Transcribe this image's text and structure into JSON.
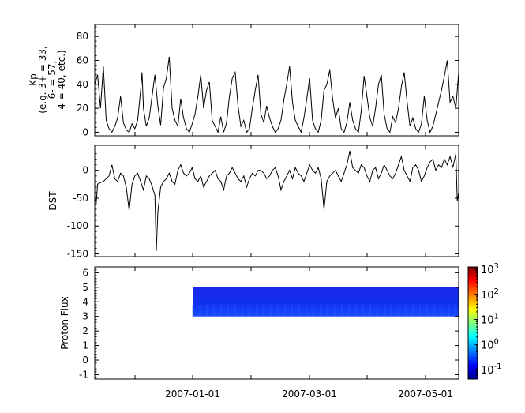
{
  "chart_data": [
    {
      "type": "line",
      "ylabel_lines": [
        "Kp",
        "(e.g. 3+ = 33,",
        "6- = 57,",
        "4 = 40, etc.)"
      ],
      "ylim": [
        -3,
        90
      ],
      "yticks": [
        0,
        20,
        40,
        60,
        80
      ],
      "series": [
        {
          "x": [
            0,
            2,
            4,
            6,
            8,
            10,
            12,
            14,
            16,
            18,
            20,
            22,
            24,
            26,
            28,
            30,
            32,
            33,
            34,
            36,
            38,
            40,
            42,
            44,
            46,
            48,
            50,
            52,
            54,
            56,
            58,
            60,
            62,
            64,
            66,
            68,
            70,
            72,
            74,
            76,
            78,
            80,
            82,
            84,
            86,
            88,
            90,
            92,
            94,
            96,
            98,
            100,
            102,
            104,
            106,
            108,
            110,
            112,
            114,
            116,
            118,
            120,
            122,
            124,
            126,
            128,
            130,
            132,
            134,
            136,
            138,
            140,
            142,
            144,
            146,
            148,
            150,
            152,
            154,
            156,
            158,
            160,
            162,
            164,
            166,
            168,
            170,
            172,
            174,
            176,
            178,
            180,
            182,
            184,
            186,
            188,
            190,
            192,
            194,
            196,
            198,
            200,
            202,
            204,
            206,
            208,
            210,
            212,
            214,
            216,
            218,
            220,
            222,
            224,
            226,
            228,
            230,
            232,
            234,
            236,
            238,
            240,
            242,
            244,
            246,
            248,
            250,
            252,
            254
          ],
          "y": [
            40,
            48,
            20,
            55,
            10,
            3,
            0,
            5,
            12,
            30,
            8,
            2,
            0,
            7,
            3,
            10,
            35,
            50,
            20,
            5,
            12,
            30,
            48,
            22,
            6,
            37,
            45,
            63,
            20,
            10,
            5,
            28,
            12,
            3,
            0,
            7,
            15,
            30,
            48,
            20,
            35,
            42,
            10,
            5,
            0,
            13,
            0,
            8,
            30,
            45,
            50,
            22,
            5,
            10,
            0,
            3,
            20,
            35,
            48,
            15,
            8,
            22,
            12,
            5,
            0,
            3,
            10,
            27,
            40,
            55,
            25,
            10,
            5,
            0,
            12,
            28,
            45,
            10,
            3,
            0,
            10,
            35,
            40,
            52,
            28,
            12,
            20,
            3,
            0,
            8,
            25,
            10,
            3,
            0,
            18,
            47,
            30,
            12,
            5,
            20,
            40,
            48,
            15,
            3,
            0,
            13,
            8,
            20,
            38,
            50,
            25,
            5,
            12,
            3,
            0,
            7,
            30,
            10,
            0,
            5,
            15,
            25,
            35,
            47,
            60,
            25,
            30,
            20,
            50
          ]
        }
      ]
    },
    {
      "type": "line",
      "ylabel": "DST",
      "ylim": [
        -155,
        45
      ],
      "yticks": [
        0,
        -50,
        -100,
        -150
      ],
      "series": [
        {
          "x": [
            0,
            1,
            2,
            4,
            6,
            8,
            10,
            12,
            14,
            16,
            18,
            20,
            22,
            24,
            26,
            28,
            30,
            32,
            34,
            36,
            38,
            40,
            42,
            43,
            44,
            46,
            48,
            50,
            52,
            54,
            56,
            58,
            60,
            62,
            64,
            66,
            68,
            70,
            72,
            74,
            76,
            78,
            80,
            82,
            84,
            86,
            88,
            90,
            92,
            94,
            96,
            98,
            100,
            102,
            104,
            106,
            108,
            110,
            112,
            114,
            116,
            118,
            120,
            122,
            124,
            126,
            128,
            130,
            132,
            134,
            136,
            138,
            140,
            142,
            144,
            146,
            148,
            150,
            152,
            154,
            156,
            158,
            160,
            162,
            164,
            166,
            168,
            170,
            172,
            174,
            176,
            178,
            180,
            182,
            184,
            186,
            188,
            190,
            192,
            194,
            196,
            198,
            200,
            202,
            204,
            206,
            208,
            210,
            212,
            214,
            216,
            218,
            220,
            222,
            224,
            226,
            228,
            230,
            232,
            234,
            236,
            238,
            240,
            242,
            244,
            246,
            248,
            250,
            252,
            253,
            254
          ],
          "y": [
            -50,
            -60,
            -25,
            -22,
            -20,
            -15,
            -10,
            10,
            -15,
            -20,
            -5,
            -10,
            -30,
            -72,
            -25,
            -10,
            -5,
            -20,
            -35,
            -10,
            -15,
            -28,
            -45,
            -145,
            -75,
            -30,
            -20,
            -15,
            -5,
            -20,
            -25,
            0,
            10,
            -5,
            -10,
            -5,
            5,
            -15,
            -20,
            -10,
            -30,
            -20,
            -10,
            -5,
            0,
            -15,
            -20,
            -35,
            -10,
            -5,
            5,
            -5,
            -15,
            -20,
            -10,
            -30,
            -15,
            -5,
            -10,
            0,
            0,
            -5,
            -15,
            -10,
            0,
            5,
            -10,
            -35,
            -20,
            -10,
            0,
            -15,
            5,
            -5,
            -10,
            -20,
            -5,
            10,
            0,
            -5,
            5,
            -15,
            -70,
            -20,
            -10,
            -5,
            0,
            -10,
            -20,
            -5,
            10,
            35,
            5,
            0,
            -5,
            10,
            5,
            -10,
            -20,
            0,
            5,
            -15,
            -5,
            10,
            0,
            -10,
            -15,
            -5,
            10,
            25,
            0,
            -10,
            -20,
            5,
            10,
            0,
            -20,
            -10,
            5,
            15,
            20,
            0,
            10,
            5,
            20,
            10,
            25,
            5,
            30,
            -55,
            -40
          ]
        }
      ]
    },
    {
      "type": "heatmap",
      "ylabel": "Proton Flux",
      "ylim": [
        -1.3,
        6.4
      ],
      "yticks": [
        -1,
        0,
        1,
        2,
        3,
        4,
        5,
        6
      ],
      "xticklabels": [
        "2007-01-01",
        "2007-03-01",
        "2007-05-01"
      ],
      "data_x_start": "2007-01-01",
      "data_y_range": [
        3,
        5
      ],
      "colorbar": {
        "min_exp": -1,
        "max_exp": 3,
        "labels": [
          "10^-1",
          "10^0",
          "10^1",
          "10^2",
          "10^3"
        ]
      },
      "value_range_shown": "approx 10^-1 (blue)"
    }
  ]
}
